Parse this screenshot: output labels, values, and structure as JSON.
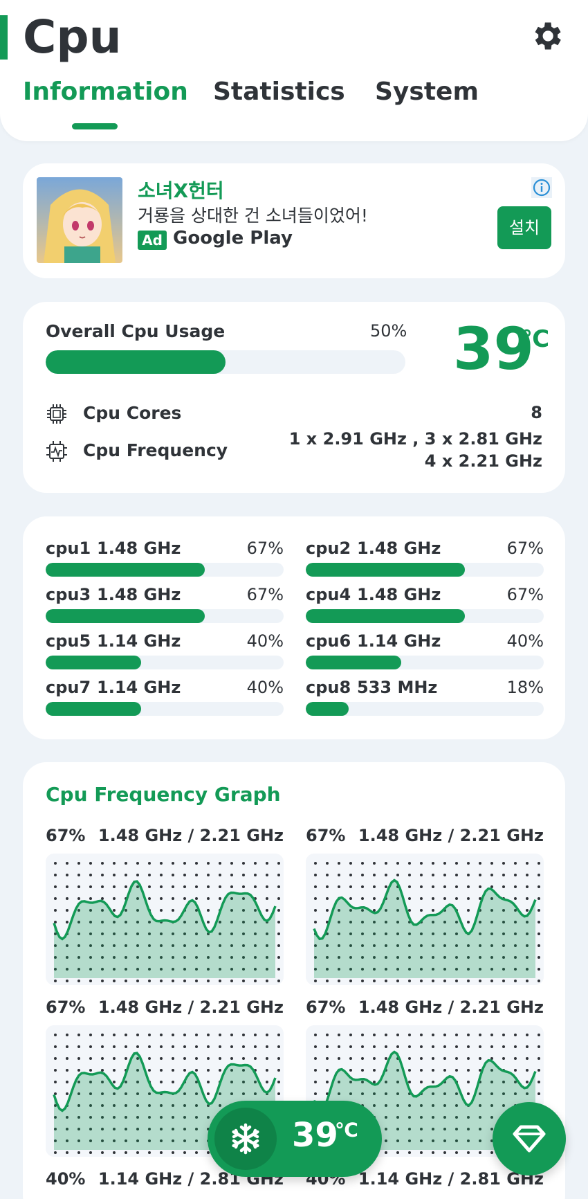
{
  "header": {
    "title": "Cpu",
    "tabs": [
      {
        "label": "Information",
        "active": true
      },
      {
        "label": "Statistics",
        "active": false
      },
      {
        "label": "System",
        "active": false
      }
    ],
    "accent": "#139a56"
  },
  "ad": {
    "title": "소녀X헌터",
    "subtitle": "거룡을 상대한 건 소녀들이었어!",
    "badge": "Ad",
    "source": "Google Play",
    "install": "설치"
  },
  "overview": {
    "usage_label": "Overall Cpu Usage",
    "usage_pct": "50%",
    "usage_value": 0.5,
    "temperature": "39",
    "temp_unit": "℃",
    "cores_label": "Cpu Cores",
    "cores_value": "8",
    "freq_label": "Cpu Frequency",
    "freq_line1": "1 x 2.91 GHz , 3 x 2.81 GHz",
    "freq_line2": "4 x 2.21 GHz"
  },
  "cores": [
    {
      "name": "cpu1",
      "freq": "1.48 GHz",
      "pct": "67%",
      "value": 0.67
    },
    {
      "name": "cpu2",
      "freq": "1.48 GHz",
      "pct": "67%",
      "value": 0.67
    },
    {
      "name": "cpu3",
      "freq": "1.48 GHz",
      "pct": "67%",
      "value": 0.67
    },
    {
      "name": "cpu4",
      "freq": "1.48 GHz",
      "pct": "67%",
      "value": 0.67
    },
    {
      "name": "cpu5",
      "freq": "1.14 GHz",
      "pct": "40%",
      "value": 0.4
    },
    {
      "name": "cpu6",
      "freq": "1.14 GHz",
      "pct": "40%",
      "value": 0.4
    },
    {
      "name": "cpu7",
      "freq": "1.14 GHz",
      "pct": "40%",
      "value": 0.4
    },
    {
      "name": "cpu8",
      "freq": "533 MHz",
      "pct": "18%",
      "value": 0.18
    }
  ],
  "graph": {
    "title": "Cpu Frequency Graph",
    "cells": [
      {
        "pct": "67%",
        "freq": "1.48 GHz / 2.21 GHz"
      },
      {
        "pct": "67%",
        "freq": "1.48 GHz / 2.21 GHz"
      },
      {
        "pct": "67%",
        "freq": "1.48 GHz / 2.21 GHz"
      },
      {
        "pct": "67%",
        "freq": "1.48 GHz / 2.21 GHz"
      },
      {
        "pct": "40%",
        "freq": "1.14 GHz / 2.81 GHz"
      },
      {
        "pct": "40%",
        "freq": "1.14 GHz / 2.81 GHz"
      }
    ]
  },
  "floating": {
    "temperature": "39",
    "unit": "℃",
    "snow_icon": "snowflake-icon",
    "fab_icon": "gem-icon"
  }
}
